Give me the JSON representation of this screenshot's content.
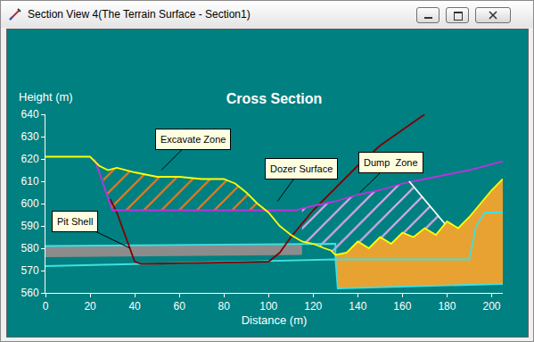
{
  "window": {
    "title": "Section View 4(The Terrain Surface - Section1)"
  },
  "chart_data": {
    "type": "line",
    "title": "Cross Section",
    "x_label": "Distance (m)",
    "y_label": "Height (m)",
    "xlim": [
      0,
      205
    ],
    "ylim": [
      560,
      640
    ],
    "xticks": [
      0,
      20,
      40,
      60,
      80,
      100,
      120,
      140,
      160,
      180,
      200
    ],
    "yticks": [
      560,
      570,
      580,
      590,
      600,
      610,
      620,
      630,
      640
    ],
    "grid": false,
    "series": [
      {
        "type": "area",
        "color": "#8c8c8c",
        "x": [
          0,
          115,
          115,
          0,
          0
        ],
        "values": [
          576,
          577,
          582,
          581,
          576
        ]
      },
      {
        "type": "area",
        "color": "#e8a232",
        "x": [
          130,
          135,
          140,
          145,
          150,
          155,
          160,
          165,
          170,
          175,
          180,
          185,
          190,
          195,
          200,
          205,
          205,
          131,
          130
        ],
        "values": [
          577,
          578,
          583,
          580,
          585,
          582,
          587,
          585,
          589,
          586,
          592,
          589,
          594,
          600,
          606,
          611,
          564,
          562,
          577
        ]
      },
      {
        "type": "hatch",
        "color": "#f07818",
        "x": [
          24,
          28,
          32,
          36,
          40,
          50,
          60,
          70,
          80,
          85,
          90,
          95,
          97,
          30,
          24
        ],
        "values": [
          617,
          615,
          616,
          615,
          614,
          612,
          612,
          611,
          611,
          609,
          605,
          600,
          597,
          597,
          617
        ]
      },
      {
        "type": "hatch",
        "color": "#e0a8e8",
        "x": [
          115,
          120,
          130,
          140,
          150,
          160,
          163,
          179,
          175,
          170,
          165,
          160,
          155,
          150,
          145,
          140,
          135,
          130,
          128,
          125,
          120,
          115,
          115
        ],
        "values": [
          598,
          599,
          601,
          604,
          606,
          609,
          610,
          591,
          586,
          589,
          585,
          587,
          582,
          585,
          580,
          583,
          578,
          577,
          579,
          580,
          582,
          583,
          598
        ]
      },
      {
        "type": "line",
        "color": "#40e0e0",
        "x": [
          0,
          130,
          131,
          205
        ],
        "values": [
          572,
          575,
          562,
          564
        ]
      },
      {
        "type": "line",
        "color": "#40e0e0",
        "x": [
          0,
          115,
          130,
          130,
          190,
          193,
          197,
          205
        ],
        "values": [
          581,
          582,
          582,
          575,
          575,
          590,
          596,
          596
        ]
      },
      {
        "type": "line",
        "color": "#800000",
        "x": [
          29,
          32,
          36,
          40,
          43,
          100,
          105,
          110,
          120,
          130,
          140,
          150,
          160,
          170
        ],
        "values": [
          602,
          596,
          585,
          574,
          573,
          574,
          578,
          585,
          597,
          607,
          617,
          626,
          633,
          640
        ]
      },
      {
        "type": "line",
        "color": "#c030e0",
        "x": [
          22,
          30,
          112,
          120,
          130,
          140,
          150,
          160,
          170,
          180,
          190,
          205
        ],
        "values": [
          620,
          597,
          597,
          599,
          601,
          604,
          606,
          609,
          611,
          613,
          615,
          619
        ]
      },
      {
        "type": "line",
        "color": "#ffff00",
        "x": [
          0,
          20,
          24,
          28,
          32,
          36,
          40,
          50,
          60,
          70,
          80,
          85,
          90,
          95,
          100,
          105,
          110,
          115,
          120,
          125,
          128,
          130,
          135,
          140,
          145,
          150,
          155,
          160,
          165,
          170,
          175,
          180,
          185,
          190,
          195,
          200,
          205
        ],
        "values": [
          621,
          621,
          617,
          615,
          616,
          615,
          614,
          612,
          612,
          611,
          611,
          609,
          605,
          600,
          596,
          590,
          586,
          583,
          582,
          580,
          579,
          577,
          578,
          583,
          580,
          585,
          582,
          587,
          585,
          589,
          586,
          592,
          589,
          594,
          600,
          606,
          611
        ]
      },
      {
        "type": "line",
        "color": "#ffffff",
        "x": [
          163,
          179
        ],
        "values": [
          610,
          591
        ]
      }
    ],
    "annotations": [
      {
        "text": "Excavate Zone",
        "x": 52,
        "y": 615
      },
      {
        "text": "Dozer Surface",
        "x": 104,
        "y": 601
      },
      {
        "text": "Dump  Zone",
        "x": 141,
        "y": 605
      },
      {
        "text": "Pit Shell",
        "x": 38,
        "y": 580
      }
    ]
  }
}
